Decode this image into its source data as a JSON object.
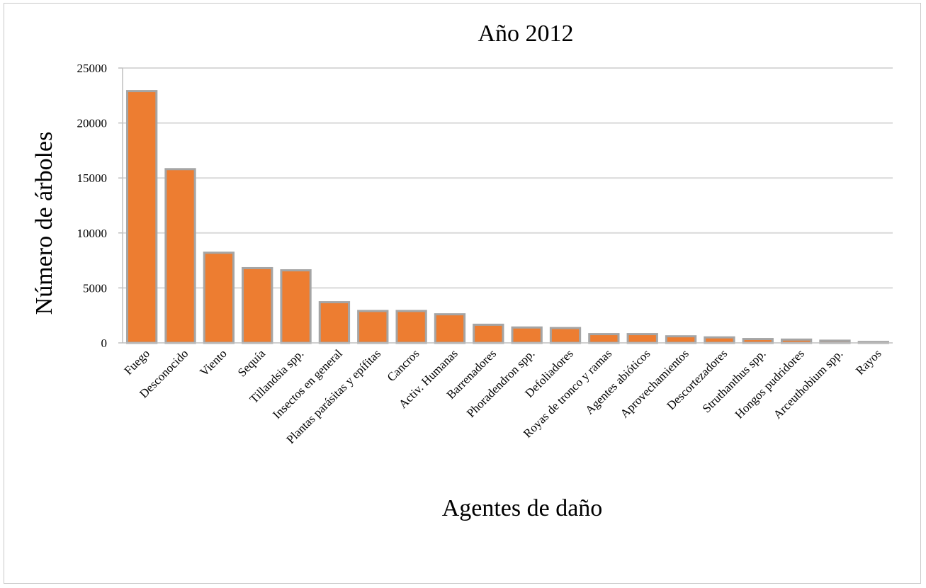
{
  "chart_data": {
    "type": "bar",
    "title": "Año 2012",
    "xlabel": "Agentes de daño",
    "ylabel": "Número de árboles",
    "ylim": [
      0,
      25000
    ],
    "yticks": [
      0,
      5000,
      10000,
      15000,
      20000,
      25000
    ],
    "grid": true,
    "legend": "none",
    "colors": {
      "bar_fill": "#ed7d31",
      "bar_stroke": "#a5a5a5",
      "grid": "#d9d9d9"
    },
    "categories": [
      "Fuego",
      "Desconocido",
      "Viento",
      "Sequía",
      "Tillandsia spp.",
      "Insectos en general",
      "Plantas parásitas y epífitas",
      "Cancros",
      "Activ. Humanas",
      "Barrenadores",
      "Phoradendron spp.",
      "Defoliadores",
      "Royas de tronco y ramas",
      "Agentes abióticos",
      "Aprovechamientos",
      "Descortezadores",
      "Struthanthus spp.",
      "Hongos pudridores",
      "Arceuthobium spp.",
      "Rayos"
    ],
    "values": [
      22900,
      15800,
      8200,
      6800,
      6600,
      3700,
      2900,
      2900,
      2600,
      1650,
      1400,
      1350,
      800,
      800,
      600,
      500,
      350,
      300,
      200,
      80
    ]
  }
}
